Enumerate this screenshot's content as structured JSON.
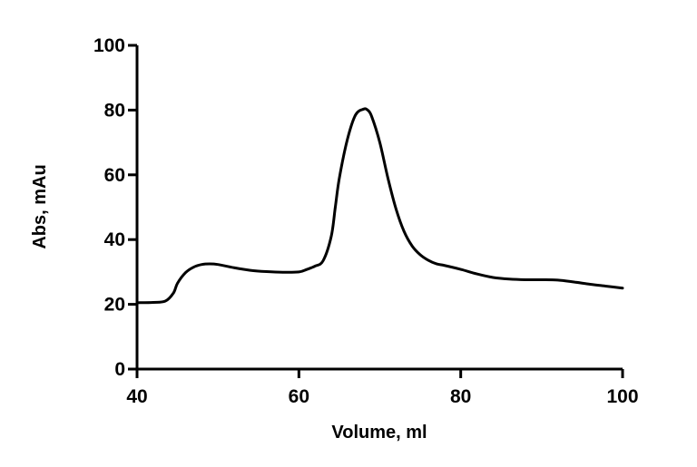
{
  "chart_data": {
    "type": "line",
    "title": "",
    "xlabel": "Volume, ml",
    "ylabel": "Abs, mAu",
    "xlim": [
      40,
      100
    ],
    "ylim": [
      0,
      100
    ],
    "xticks": [
      40,
      60,
      80,
      100
    ],
    "yticks": [
      0,
      20,
      40,
      60,
      80,
      100
    ],
    "grid": false,
    "legend": "none",
    "line_color": "#000000",
    "series": [
      {
        "x": [
          40,
          42,
          43.5,
          44.5,
          45,
          46,
          47,
          48,
          49,
          50,
          52,
          54,
          56,
          58,
          60,
          61,
          62,
          63,
          64,
          64.5,
          65,
          66,
          67,
          68,
          68.5,
          69,
          70,
          71,
          72,
          73,
          74,
          75,
          76,
          77,
          78,
          80,
          82,
          84,
          86,
          88,
          90,
          92,
          94,
          96,
          98,
          100
        ],
        "y": [
          20.5,
          20.6,
          21,
          23.5,
          26.5,
          29.8,
          31.5,
          32.3,
          32.5,
          32.3,
          31.3,
          30.5,
          30.1,
          29.9,
          30,
          30.8,
          31.8,
          33.5,
          41,
          50,
          59,
          71,
          78.5,
          80.3,
          80,
          78,
          70,
          59,
          49.5,
          42.5,
          38,
          35.3,
          33.6,
          32.5,
          32,
          30.8,
          29.4,
          28.3,
          27.8,
          27.6,
          27.6,
          27.5,
          26.9,
          26.2,
          25.6,
          25
        ]
      }
    ]
  }
}
